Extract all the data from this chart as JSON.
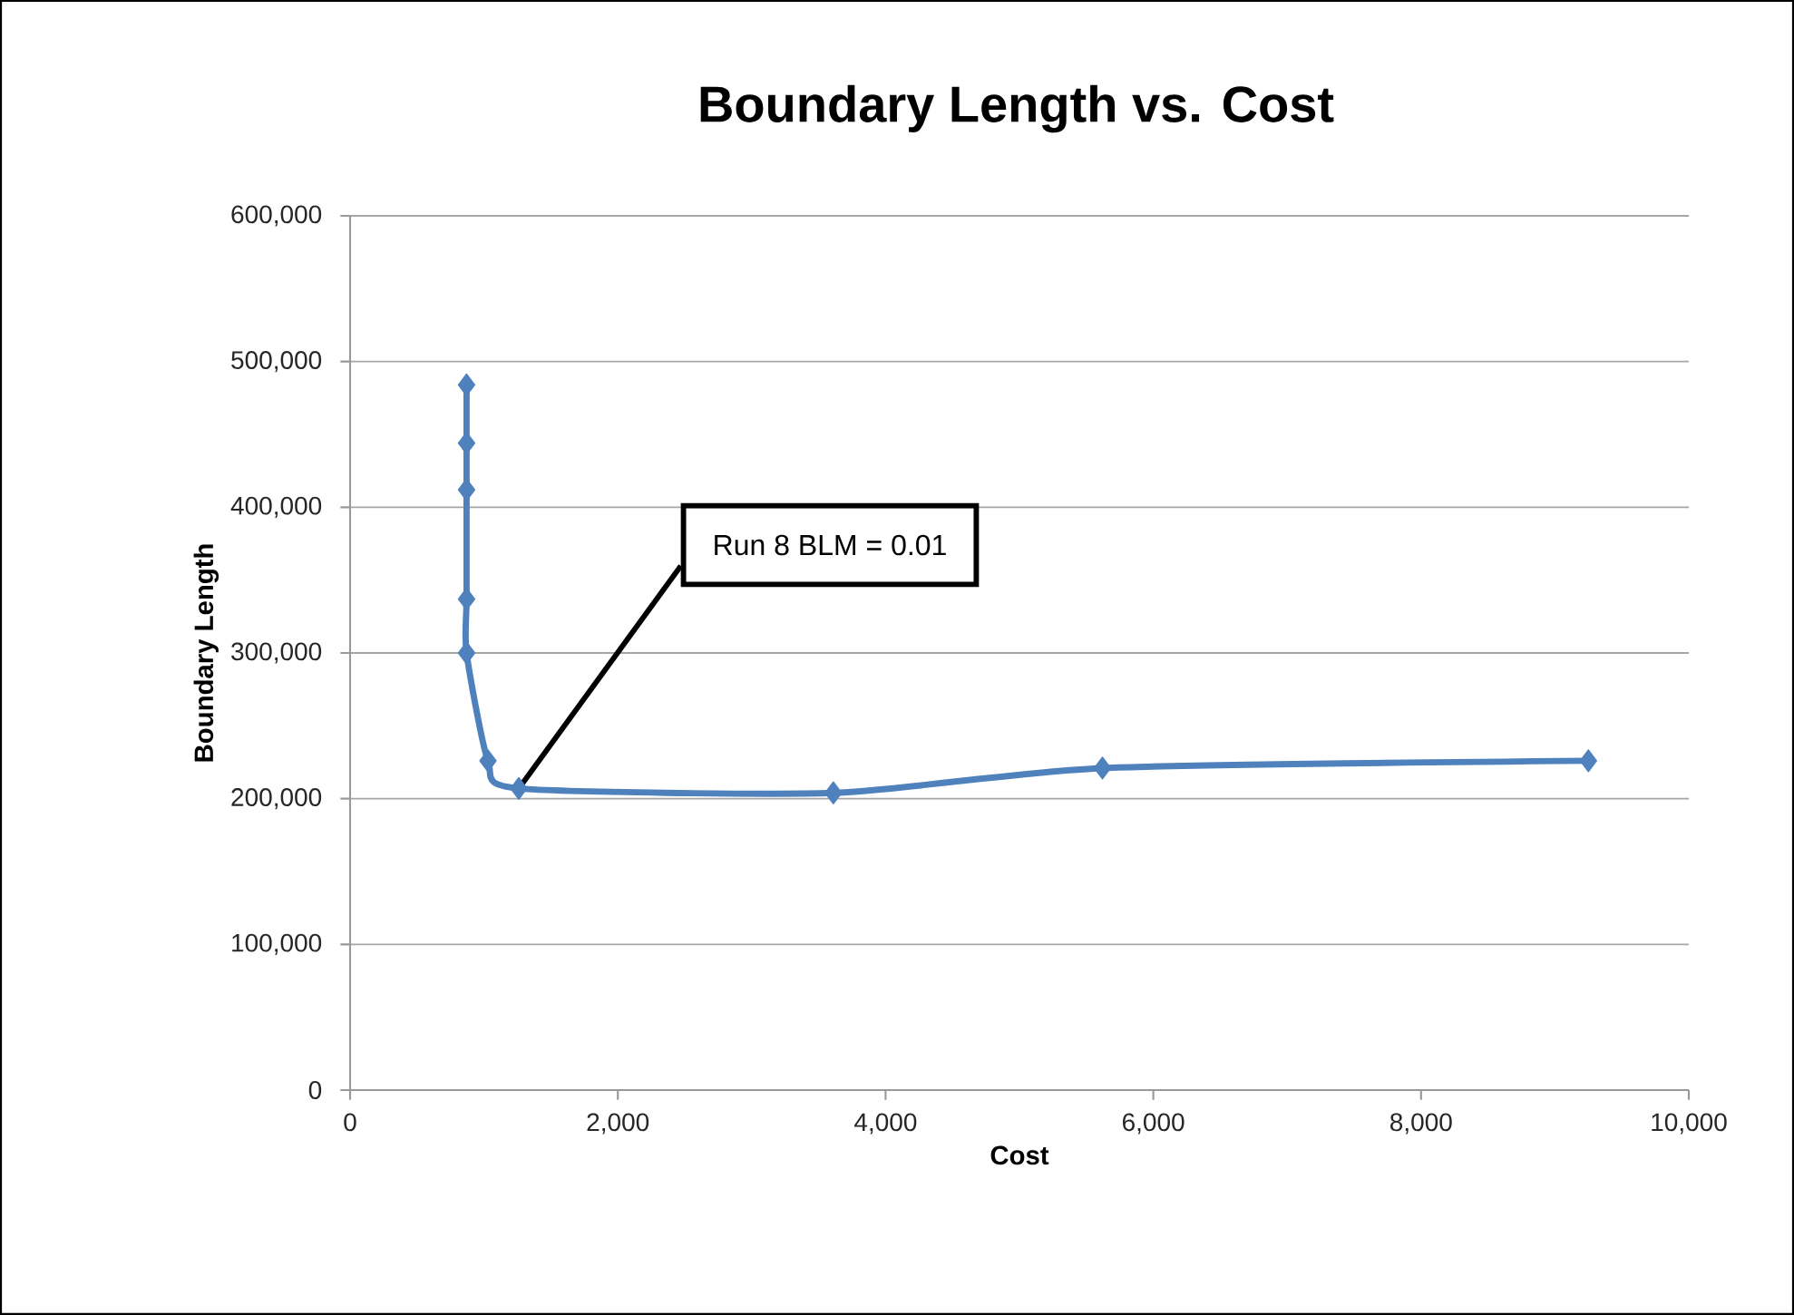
{
  "chart_data": {
    "type": "line",
    "title": "Boundary Length vs. Cost",
    "xlabel": "Cost",
    "ylabel": "Boundary Length",
    "x": [
      870,
      870,
      870,
      870,
      870,
      1030,
      1260,
      3610,
      5620,
      9250
    ],
    "series": [
      {
        "color": "#4f81bd",
        "values": [
          484000,
          444000,
          412000,
          337000,
          300000,
          226000,
          207000,
          204000,
          221000,
          226000
        ]
      }
    ],
    "xlim": [
      0,
      10000
    ],
    "xticks": [
      0,
      {
        "value": 2000,
        "label": "2,000"
      },
      {
        "value": 4000,
        "label": "4,000"
      },
      {
        "value": 6000,
        "label": "6,000"
      },
      {
        "value": 8000,
        "label": "8,000"
      },
      {
        "value": 10000,
        "label": "10,000"
      }
    ],
    "ylim": [
      0,
      600000
    ],
    "yticks": [
      0,
      {
        "value": 100000,
        "label": "100,000"
      },
      {
        "value": 200000,
        "label": "200,000"
      },
      {
        "value": 300000,
        "label": "300,000"
      },
      {
        "value": 400000,
        "label": "400,000"
      },
      {
        "value": 500000,
        "label": "500,000"
      },
      {
        "value": 600000,
        "label": "600,000"
      }
    ],
    "grid": "y",
    "marker": "diamond",
    "line_style": "solid",
    "annotations": [
      {
        "text": "Run 8 BLM = 0.01",
        "x": 1260,
        "y": 207000
      }
    ]
  }
}
